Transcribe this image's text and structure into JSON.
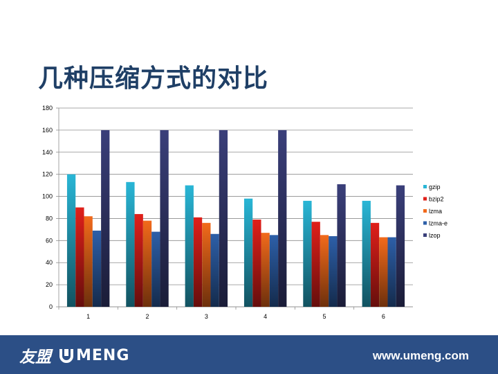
{
  "slide": {
    "title": "几种压缩方式的对比"
  },
  "footer": {
    "logo_cn": "友盟",
    "logo_en": "MENG",
    "url": "www.umeng.com"
  },
  "colors": {
    "gzip": "#29b6d6",
    "bzip2": "#e0201a",
    "lzma": "#f26a1b",
    "lzma-e": "#2d5fa8",
    "lzop": "#3a3f7a",
    "footer_bg": "#2c4f86",
    "title": "#1f3f66"
  },
  "chart_data": {
    "type": "bar",
    "categories": [
      "1",
      "2",
      "3",
      "4",
      "5",
      "6"
    ],
    "series": [
      {
        "name": "gzip",
        "values": [
          120,
          113,
          110,
          98,
          96,
          96
        ]
      },
      {
        "name": "bzip2",
        "values": [
          90,
          84,
          81,
          79,
          77,
          76
        ]
      },
      {
        "name": "lzma",
        "values": [
          82,
          78,
          76,
          67,
          65,
          63
        ]
      },
      {
        "name": "lzma-e",
        "values": [
          69,
          68,
          66,
          65,
          64,
          63
        ]
      },
      {
        "name": "lzop",
        "values": [
          160,
          160,
          160,
          160,
          111,
          110
        ]
      }
    ],
    "yticks": [
      0,
      20,
      40,
      60,
      80,
      100,
      120,
      140,
      160,
      180
    ],
    "ylim": [
      0,
      180
    ],
    "grid": true,
    "legend": "right"
  }
}
